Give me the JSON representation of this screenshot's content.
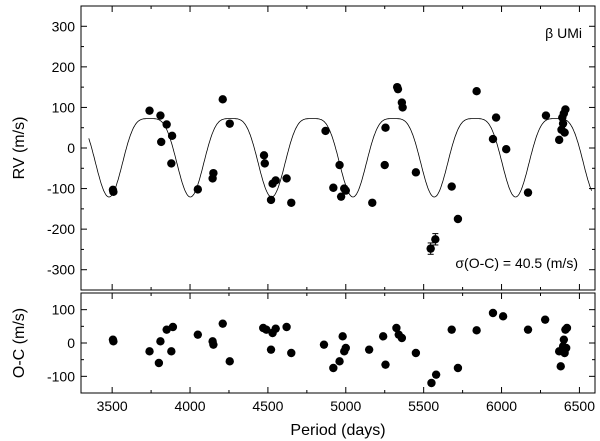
{
  "chart_data": [
    {
      "type": "scatter",
      "panel": "top",
      "title": "",
      "xlabel": "",
      "ylabel": "RV (m/s)",
      "xlim": [
        3300,
        6600
      ],
      "ylim": [
        -350,
        350
      ],
      "y_ticks": [
        -300,
        -200,
        -100,
        0,
        100,
        200,
        300
      ],
      "annotations": [
        "β UMi",
        "σ(O-C) = 40.5 (m/s)"
      ],
      "series": [
        {
          "name": "RV data",
          "points": [
            [
              3505,
              -103
            ],
            [
              3508,
              -108
            ],
            [
              3740,
              92
            ],
            [
              3810,
              80
            ],
            [
              3815,
              15
            ],
            [
              3850,
              58
            ],
            [
              3880,
              -38
            ],
            [
              3885,
              30
            ],
            [
              4050,
              -102
            ],
            [
              4145,
              -75
            ],
            [
              4150,
              -62
            ],
            [
              4210,
              120
            ],
            [
              4255,
              60
            ],
            [
              4475,
              -18
            ],
            [
              4480,
              -38
            ],
            [
              4520,
              -128
            ],
            [
              4530,
              -88
            ],
            [
              4550,
              -80
            ],
            [
              4620,
              -75
            ],
            [
              4650,
              -135
            ],
            [
              4870,
              42
            ],
            [
              4920,
              -98
            ],
            [
              4960,
              -42
            ],
            [
              4970,
              -120
            ],
            [
              4990,
              -100
            ],
            [
              5000,
              -105
            ],
            [
              5170,
              -135
            ],
            [
              5250,
              -42
            ],
            [
              5255,
              50
            ],
            [
              5330,
              150
            ],
            [
              5335,
              145
            ],
            [
              5360,
              112
            ],
            [
              5365,
              100
            ],
            [
              5450,
              -60
            ],
            [
              5545,
              -248
            ],
            [
              5575,
              -225
            ],
            [
              5680,
              -95
            ],
            [
              5720,
              -175
            ],
            [
              5840,
              140
            ],
            [
              5945,
              22
            ],
            [
              5965,
              75
            ],
            [
              6030,
              -3
            ],
            [
              6170,
              -110
            ],
            [
              6285,
              80
            ],
            [
              6370,
              20
            ],
            [
              6385,
              45
            ],
            [
              6390,
              75
            ],
            [
              6395,
              60
            ],
            [
              6400,
              85
            ],
            [
              6405,
              38
            ],
            [
              6410,
              95
            ]
          ]
        },
        {
          "name": "Keplerian model",
          "model_params": {
            "period": 522,
            "semi_amplitude": 115,
            "phase_x0": 3480,
            "eccentricity_shape": 0.25
          }
        }
      ]
    },
    {
      "type": "scatter",
      "panel": "bottom",
      "xlabel": "Period (days)",
      "ylabel": "O-C (m/s)",
      "xlim": [
        3300,
        6600
      ],
      "ylim": [
        -150,
        150
      ],
      "x_ticks": [
        3500,
        4000,
        4500,
        5000,
        5500,
        6000,
        6500
      ],
      "y_ticks": [
        -100,
        0,
        100
      ],
      "series": [
        {
          "name": "Residuals",
          "points": [
            [
              3505,
              10
            ],
            [
              3508,
              5
            ],
            [
              3740,
              -25
            ],
            [
              3800,
              -60
            ],
            [
              3810,
              5
            ],
            [
              3850,
              40
            ],
            [
              3880,
              -25
            ],
            [
              3890,
              48
            ],
            [
              4050,
              25
            ],
            [
              4145,
              5
            ],
            [
              4150,
              -5
            ],
            [
              4210,
              58
            ],
            [
              4255,
              -55
            ],
            [
              4470,
              45
            ],
            [
              4490,
              40
            ],
            [
              4520,
              -20
            ],
            [
              4530,
              30
            ],
            [
              4550,
              43
            ],
            [
              4620,
              48
            ],
            [
              4650,
              -30
            ],
            [
              4860,
              -5
            ],
            [
              4920,
              -75
            ],
            [
              4960,
              -55
            ],
            [
              4980,
              20
            ],
            [
              4990,
              -25
            ],
            [
              5000,
              -15
            ],
            [
              5150,
              -20
            ],
            [
              5240,
              20
            ],
            [
              5255,
              -65
            ],
            [
              5325,
              45
            ],
            [
              5340,
              25
            ],
            [
              5360,
              15
            ],
            [
              5450,
              -30
            ],
            [
              5550,
              -120
            ],
            [
              5580,
              -95
            ],
            [
              5680,
              40
            ],
            [
              5720,
              -75
            ],
            [
              5840,
              38
            ],
            [
              5945,
              90
            ],
            [
              6010,
              80
            ],
            [
              6170,
              40
            ],
            [
              6280,
              70
            ],
            [
              6370,
              -25
            ],
            [
              6380,
              -70
            ],
            [
              6395,
              -10
            ],
            [
              6400,
              10
            ],
            [
              6405,
              -30
            ],
            [
              6410,
              40
            ],
            [
              6415,
              -15
            ],
            [
              6420,
              45
            ]
          ]
        }
      ]
    }
  ]
}
